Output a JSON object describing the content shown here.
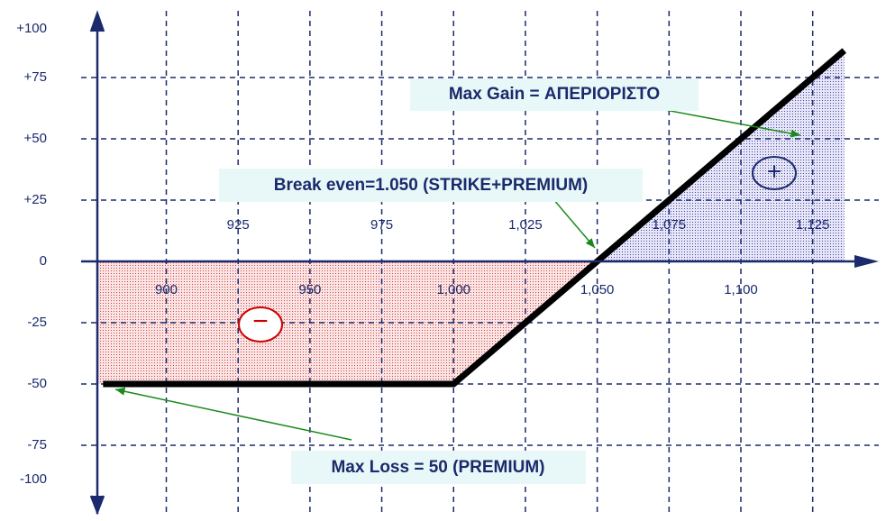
{
  "chart_data": {
    "type": "line",
    "x": [
      878,
      1000,
      1136
    ],
    "series": [
      {
        "color": "#000000",
        "values": [
          -50,
          -50,
          86
        ]
      }
    ],
    "xlim": [
      876,
      1148
    ],
    "ylim": [
      -100,
      100
    ],
    "xticks": [
      900,
      925,
      950,
      975,
      {
        "value": 1000,
        "label": "1,000"
      },
      {
        "value": 1025,
        "label": "1,025"
      },
      {
        "value": 1050,
        "label": "1,050"
      },
      {
        "value": 1075,
        "label": "1,075"
      },
      {
        "value": 1100,
        "label": "1,100"
      },
      {
        "value": 1125,
        "label": "1,125"
      }
    ],
    "yticks": [
      {
        "value": 100,
        "label": "+100"
      },
      {
        "value": 75,
        "label": "+75"
      },
      {
        "value": 50,
        "label": "+50"
      },
      {
        "value": 25,
        "label": "+25"
      },
      0,
      -25,
      -50,
      -75,
      -100
    ],
    "grid": true,
    "annotations": {
      "max_gain": "Max Gain = ΑΠΕΡΙΟΡΙΣΤΟ",
      "break_even": "Break even=1.050 (STRIKE+PREMIUM)",
      "max_loss": "Max Loss = 50 (PREMIUM)",
      "gain_symbol": "+",
      "loss_symbol": "−"
    }
  }
}
